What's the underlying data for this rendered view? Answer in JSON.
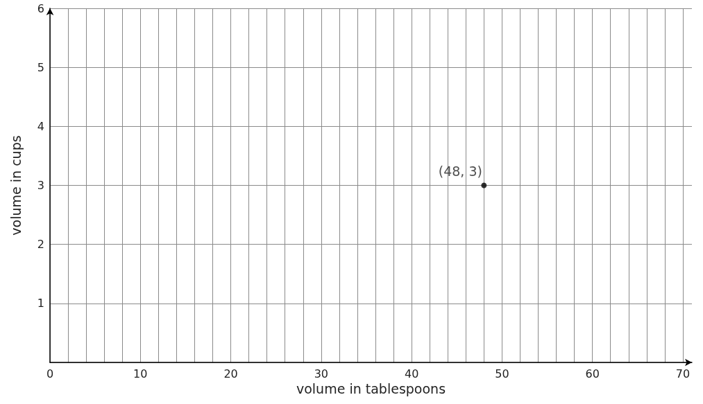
{
  "chart_data": {
    "type": "scatter",
    "xlabel": "volume in tablespoons",
    "ylabel": "volume in cups",
    "x": [
      48
    ],
    "values": [
      3
    ],
    "color": "#000000",
    "marker": "circle",
    "annotations": [
      {
        "text": "(48, 3)",
        "x": 48,
        "y": 3
      }
    ],
    "xlim": [
      0,
      71
    ],
    "ylim": [
      0,
      6
    ],
    "xticks": [
      0,
      {
        "value": 2,
        "label": null
      },
      {
        "value": 4,
        "label": null
      },
      {
        "value": 6,
        "label": null
      },
      {
        "value": 8,
        "label": null
      },
      10,
      {
        "value": 12,
        "label": null
      },
      {
        "value": 14,
        "label": null
      },
      {
        "value": 16,
        "label": null
      },
      {
        "value": 18,
        "label": null
      },
      20,
      {
        "value": 22,
        "label": null
      },
      {
        "value": 24,
        "label": null
      },
      {
        "value": 26,
        "label": null
      },
      {
        "value": 28,
        "label": null
      },
      30,
      {
        "value": 32,
        "label": null
      },
      {
        "value": 34,
        "label": null
      },
      {
        "value": 36,
        "label": null
      },
      {
        "value": 38,
        "label": null
      },
      40,
      {
        "value": 42,
        "label": null
      },
      {
        "value": 44,
        "label": null
      },
      {
        "value": 46,
        "label": null
      },
      {
        "value": 48,
        "label": null
      },
      50,
      {
        "value": 52,
        "label": null
      },
      {
        "value": 54,
        "label": null
      },
      {
        "value": 56,
        "label": null
      },
      {
        "value": 58,
        "label": null
      },
      60,
      {
        "value": 62,
        "label": null
      },
      {
        "value": 64,
        "label": null
      },
      {
        "value": 66,
        "label": null
      },
      {
        "value": 68,
        "label": null
      },
      70
    ],
    "yticks": [
      {
        "value": 0,
        "label": null
      },
      1,
      2,
      3,
      4,
      5,
      6
    ],
    "grid": true
  }
}
